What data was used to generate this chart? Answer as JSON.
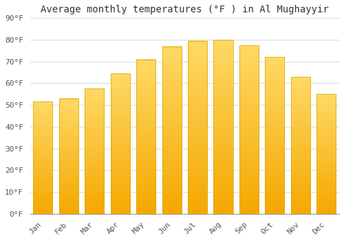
{
  "title": "Average monthly temperatures (°F ) in Al Mughayyir",
  "months": [
    "Jan",
    "Feb",
    "Mar",
    "Apr",
    "May",
    "Jun",
    "Jul",
    "Aug",
    "Sep",
    "Oct",
    "Nov",
    "Dec"
  ],
  "values": [
    51.5,
    53,
    57.5,
    64.5,
    71,
    77,
    79.5,
    80,
    77.5,
    72,
    63,
    55
  ],
  "bar_color_bottom": "#F5A800",
  "bar_color_top": "#FFD966",
  "background_color": "#FFFFFF",
  "grid_color": "#DDDDDD",
  "ylim": [
    0,
    90
  ],
  "yticks": [
    0,
    10,
    20,
    30,
    40,
    50,
    60,
    70,
    80,
    90
  ],
  "title_fontsize": 10,
  "tick_fontsize": 8,
  "font_family": "monospace"
}
